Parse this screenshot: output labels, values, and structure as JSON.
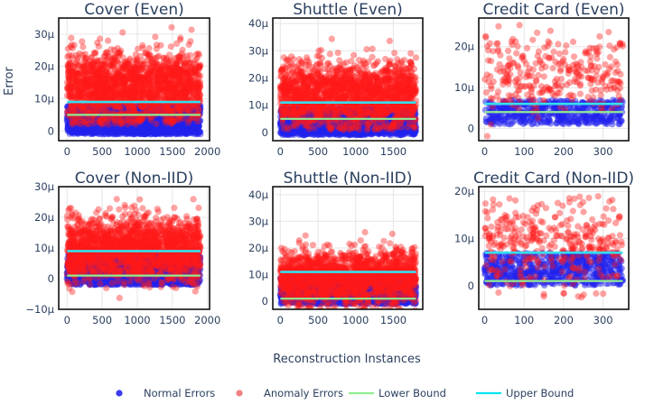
{
  "chart_data": {
    "type": "scatter",
    "ylabel": "Error",
    "xlabel": "Reconstruction Instances",
    "legend": {
      "position": "bottom",
      "entries": [
        {
          "name": "Normal Errors",
          "kind": "marker",
          "color": "#3a3aee"
        },
        {
          "name": "Anomaly Errors",
          "kind": "marker",
          "color": "#f08080"
        },
        {
          "name": "Lower Bound",
          "kind": "line",
          "color": "#90ee90"
        },
        {
          "name": "Upper Bound",
          "kind": "line",
          "color": "#00e5ee"
        }
      ]
    },
    "series_colors": {
      "normal": "#2222ee",
      "anomaly": "#ff1a1a",
      "lower_bound": "#90ee90",
      "upper_bound": "#33e0ee"
    },
    "panels": [
      {
        "title": "Cover (Even)",
        "xlim": [
          -120,
          2030
        ],
        "ylim": [
          -3,
          35
        ],
        "xticks": [
          0,
          500,
          1000,
          1500,
          2000
        ],
        "yticks": [
          0,
          10,
          20,
          30
        ],
        "ytick_labels": [
          "0",
          "10μ",
          "20μ",
          "30μ"
        ],
        "normal": {
          "n": 1900,
          "x_range": [
            0,
            1900
          ],
          "y_range": [
            -1,
            8
          ]
        },
        "anomaly": {
          "n": 1900,
          "x_range": [
            0,
            1900
          ],
          "y_center": 13.5,
          "y_spread": 5.5,
          "y_range": [
            2,
            34
          ]
        },
        "lower_bound": 5,
        "upper_bound": 9
      },
      {
        "title": "Shuttle (Even)",
        "xlim": [
          -100,
          1890
        ],
        "ylim": [
          -3,
          42
        ],
        "xticks": [
          0,
          500,
          1000,
          1500
        ],
        "yticks": [
          0,
          10,
          20,
          30,
          40
        ],
        "ytick_labels": [
          "0",
          "10μ",
          "20μ",
          "30μ",
          "40μ"
        ],
        "normal": {
          "n": 1800,
          "x_range": [
            0,
            1800
          ],
          "y_range": [
            -1,
            9
          ]
        },
        "anomaly": {
          "n": 1800,
          "x_range": [
            0,
            1800
          ],
          "y_center": 14,
          "y_spread": 6,
          "y_range": [
            1,
            38
          ]
        },
        "lower_bound": 5,
        "upper_bound": 11
      },
      {
        "title": "Credit Card (Even)",
        "xlim": [
          -15,
          365
        ],
        "ylim": [
          -3,
          27
        ],
        "xticks": [
          0,
          100,
          200,
          300
        ],
        "yticks": [
          0,
          10,
          20
        ],
        "ytick_labels": [
          "0",
          "10μ",
          "20μ"
        ],
        "normal": {
          "n": 450,
          "x_range": [
            0,
            350
          ],
          "y_range": [
            1,
            7
          ]
        },
        "anomaly": {
          "n": 300,
          "x_range": [
            0,
            350
          ],
          "y_center": 13,
          "y_spread": 5.5,
          "y_range": [
            -2,
            26
          ]
        },
        "lower_bound": 4,
        "upper_bound": 6
      },
      {
        "title": "Cover (Non-IID)",
        "xlim": [
          -120,
          2030
        ],
        "ylim": [
          -10,
          30
        ],
        "xticks": [
          0,
          500,
          1000,
          1500,
          2000
        ],
        "yticks": [
          -10,
          0,
          10,
          20,
          30
        ],
        "ytick_labels": [
          "−10μ",
          "0",
          "10μ",
          "20μ",
          "30μ"
        ],
        "normal": {
          "n": 1900,
          "x_range": [
            0,
            1900
          ],
          "y_range": [
            -2,
            8
          ]
        },
        "anomaly": {
          "n": 1900,
          "x_range": [
            0,
            1900
          ],
          "y_center": 10,
          "y_spread": 5,
          "y_range": [
            -7,
            27
          ]
        },
        "lower_bound": 1,
        "upper_bound": 9
      },
      {
        "title": "Shuttle (Non-IID)",
        "xlim": [
          -100,
          1890
        ],
        "ylim": [
          -3,
          43
        ],
        "xticks": [
          0,
          500,
          1000,
          1500
        ],
        "yticks": [
          0,
          10,
          20,
          30,
          40
        ],
        "ytick_labels": [
          "0",
          "10μ",
          "20μ",
          "30μ",
          "40μ"
        ],
        "normal": {
          "n": 1800,
          "x_range": [
            0,
            1800
          ],
          "y_range": [
            -1,
            9
          ]
        },
        "anomaly": {
          "n": 1800,
          "x_range": [
            0,
            1800
          ],
          "y_center": 9,
          "y_spread": 5,
          "y_range": [
            -4,
            38
          ]
        },
        "lower_bound": 1,
        "upper_bound": 11
      },
      {
        "title": "Credit Card (Non-IID)",
        "xlim": [
          -15,
          365
        ],
        "ylim": [
          -5,
          21
        ],
        "xticks": [
          0,
          100,
          200,
          300
        ],
        "yticks": [
          0,
          10,
          20
        ],
        "ytick_labels": [
          "0",
          "10μ",
          "20μ"
        ],
        "normal": {
          "n": 600,
          "x_range": [
            0,
            350
          ],
          "y_range": [
            0,
            7
          ]
        },
        "anomaly": {
          "n": 350,
          "x_range": [
            0,
            350
          ],
          "y_center": 9,
          "y_spread": 5,
          "y_range": [
            -3,
            19
          ]
        },
        "lower_bound": 1,
        "upper_bound": 7
      }
    ]
  }
}
